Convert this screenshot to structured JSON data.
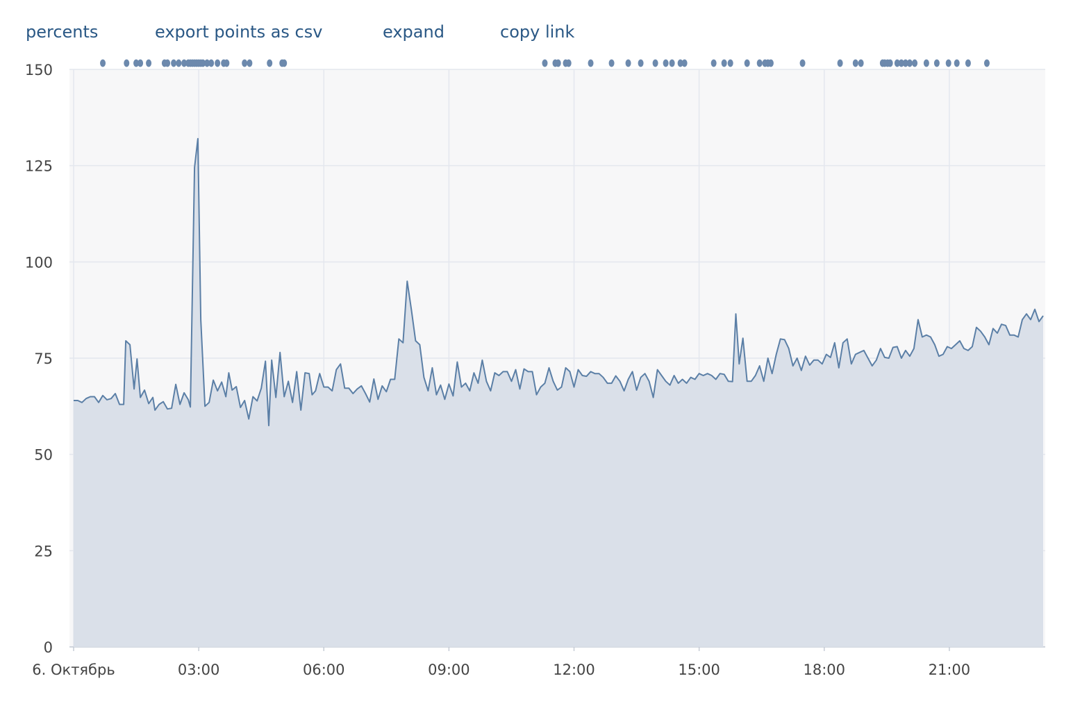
{
  "toolbar": {
    "percents": "percents",
    "export_csv": "export points as csv",
    "expand": "expand",
    "copy_link": "copy link"
  },
  "colors": {
    "line": "#5b7fa6",
    "fill": "#dae0e9",
    "plot_bg": "#f7f7f8",
    "grid": "#e4e7ee",
    "link": "#2a5885",
    "marker": "#6c89ad"
  },
  "chart_data": {
    "type": "area",
    "title": "",
    "xlabel": "",
    "ylabel": "",
    "ylim": [
      0,
      150
    ],
    "xlim_hours": [
      -0.1,
      23.3
    ],
    "y_ticks": [
      {
        "value": 0,
        "label": "0"
      },
      {
        "value": 25,
        "label": "25"
      },
      {
        "value": 50,
        "label": "50"
      },
      {
        "value": 75,
        "label": "75"
      },
      {
        "value": 100,
        "label": "100"
      },
      {
        "value": 125,
        "label": "125"
      },
      {
        "value": 150,
        "label": "150"
      }
    ],
    "x_ticks": [
      {
        "value": 0,
        "label": "6. Октябрь"
      },
      {
        "value": 3,
        "label": "03:00"
      },
      {
        "value": 6,
        "label": "06:00"
      },
      {
        "value": 9,
        "label": "09:00"
      },
      {
        "value": 12,
        "label": "12:00"
      },
      {
        "value": 15,
        "label": "15:00"
      },
      {
        "value": 18,
        "label": "18:00"
      },
      {
        "value": 21,
        "label": "21:00"
      }
    ],
    "grid": true,
    "legend": "none",
    "series": [
      {
        "points": [
          [
            0.0,
            64
          ],
          [
            0.1,
            64
          ],
          [
            0.2,
            63.5
          ],
          [
            0.3,
            64.5
          ],
          [
            0.4,
            65
          ],
          [
            0.5,
            65
          ],
          [
            0.6,
            63.5
          ],
          [
            0.7,
            65.3
          ],
          [
            0.8,
            64.2
          ],
          [
            0.9,
            64.5
          ],
          [
            1.0,
            65.8
          ],
          [
            1.1,
            63
          ],
          [
            1.2,
            63
          ],
          [
            1.25,
            79.5
          ],
          [
            1.35,
            78.5
          ],
          [
            1.45,
            67
          ],
          [
            1.52,
            74.8
          ],
          [
            1.6,
            64.8
          ],
          [
            1.7,
            66.7
          ],
          [
            1.8,
            63.2
          ],
          [
            1.9,
            64.8
          ],
          [
            1.95,
            61.5
          ],
          [
            2.05,
            63
          ],
          [
            2.15,
            63.7
          ],
          [
            2.25,
            61.8
          ],
          [
            2.35,
            62
          ],
          [
            2.45,
            68.2
          ],
          [
            2.55,
            63
          ],
          [
            2.65,
            66
          ],
          [
            2.75,
            64.2
          ],
          [
            2.8,
            62.3
          ],
          [
            2.9,
            124.5
          ],
          [
            2.98,
            132
          ],
          [
            3.05,
            85
          ],
          [
            3.15,
            62.5
          ],
          [
            3.25,
            63.5
          ],
          [
            3.35,
            69.3
          ],
          [
            3.45,
            66.5
          ],
          [
            3.55,
            68.8
          ],
          [
            3.65,
            65
          ],
          [
            3.72,
            71.2
          ],
          [
            3.8,
            66.7
          ],
          [
            3.9,
            67.6
          ],
          [
            4.0,
            62.2
          ],
          [
            4.1,
            64
          ],
          [
            4.2,
            59.2
          ],
          [
            4.3,
            65
          ],
          [
            4.4,
            63.9
          ],
          [
            4.5,
            67.2
          ],
          [
            4.6,
            74.2
          ],
          [
            4.68,
            57.5
          ],
          [
            4.75,
            74.5
          ],
          [
            4.85,
            64.8
          ],
          [
            4.95,
            76.5
          ],
          [
            5.05,
            65
          ],
          [
            5.15,
            69
          ],
          [
            5.25,
            63.5
          ],
          [
            5.35,
            71.5
          ],
          [
            5.45,
            61.5
          ],
          [
            5.55,
            71.2
          ],
          [
            5.65,
            71
          ],
          [
            5.72,
            65.5
          ],
          [
            5.8,
            66.5
          ],
          [
            5.9,
            71
          ],
          [
            6.0,
            67.5
          ],
          [
            6.1,
            67.5
          ],
          [
            6.2,
            66.5
          ],
          [
            6.3,
            72
          ],
          [
            6.4,
            73.5
          ],
          [
            6.5,
            67.2
          ],
          [
            6.6,
            67.2
          ],
          [
            6.7,
            65.8
          ],
          [
            6.8,
            67
          ],
          [
            6.9,
            67.8
          ],
          [
            7.0,
            65.8
          ],
          [
            7.1,
            63.6
          ],
          [
            7.2,
            69.6
          ],
          [
            7.3,
            64.3
          ],
          [
            7.4,
            67.8
          ],
          [
            7.5,
            66.3
          ],
          [
            7.6,
            69.5
          ],
          [
            7.7,
            69.5
          ],
          [
            7.8,
            80
          ],
          [
            7.9,
            79
          ],
          [
            8.0,
            95
          ],
          [
            8.1,
            87.5
          ],
          [
            8.2,
            79.5
          ],
          [
            8.3,
            78.5
          ],
          [
            8.4,
            70
          ],
          [
            8.5,
            66.5
          ],
          [
            8.6,
            72.5
          ],
          [
            8.7,
            65.5
          ],
          [
            8.8,
            68
          ],
          [
            8.9,
            64.3
          ],
          [
            9.0,
            68.3
          ],
          [
            9.1,
            65.2
          ],
          [
            9.2,
            74
          ],
          [
            9.3,
            67.5
          ],
          [
            9.4,
            68.5
          ],
          [
            9.5,
            66.5
          ],
          [
            9.6,
            71.2
          ],
          [
            9.7,
            68.5
          ],
          [
            9.8,
            74.5
          ],
          [
            9.9,
            69
          ],
          [
            10.0,
            66.5
          ],
          [
            10.1,
            71.2
          ],
          [
            10.2,
            70.5
          ],
          [
            10.3,
            71.5
          ],
          [
            10.4,
            71.5
          ],
          [
            10.5,
            69
          ],
          [
            10.6,
            72
          ],
          [
            10.7,
            67
          ],
          [
            10.8,
            72.2
          ],
          [
            10.9,
            71.5
          ],
          [
            11.0,
            71.5
          ],
          [
            11.1,
            65.5
          ],
          [
            11.2,
            67.5
          ],
          [
            11.3,
            68.5
          ],
          [
            11.4,
            72.5
          ],
          [
            11.5,
            69
          ],
          [
            11.6,
            66.7
          ],
          [
            11.7,
            67.5
          ],
          [
            11.8,
            72.5
          ],
          [
            11.9,
            71.5
          ],
          [
            12.0,
            67.5
          ],
          [
            12.1,
            72
          ],
          [
            12.2,
            70.5
          ],
          [
            12.3,
            70.3
          ],
          [
            12.4,
            71.5
          ],
          [
            12.5,
            71
          ],
          [
            12.6,
            71
          ],
          [
            12.7,
            70
          ],
          [
            12.8,
            68.5
          ],
          [
            12.9,
            68.5
          ],
          [
            13.0,
            70.4
          ],
          [
            13.1,
            69
          ],
          [
            13.2,
            66.5
          ],
          [
            13.3,
            69.5
          ],
          [
            13.4,
            71.5
          ],
          [
            13.5,
            66.7
          ],
          [
            13.6,
            70
          ],
          [
            13.7,
            71
          ],
          [
            13.8,
            69
          ],
          [
            13.9,
            64.8
          ],
          [
            14.0,
            72
          ],
          [
            14.1,
            70.5
          ],
          [
            14.2,
            69
          ],
          [
            14.3,
            68
          ],
          [
            14.4,
            70.5
          ],
          [
            14.5,
            68.5
          ],
          [
            14.6,
            69.5
          ],
          [
            14.7,
            68.5
          ],
          [
            14.8,
            70
          ],
          [
            14.9,
            69.5
          ],
          [
            15.0,
            71
          ],
          [
            15.1,
            70.5
          ],
          [
            15.2,
            71
          ],
          [
            15.3,
            70.5
          ],
          [
            15.4,
            69.5
          ],
          [
            15.5,
            71
          ],
          [
            15.6,
            70.8
          ],
          [
            15.7,
            69
          ],
          [
            15.8,
            68.9
          ],
          [
            15.88,
            86.5
          ],
          [
            15.96,
            73.5
          ],
          [
            16.05,
            80.2
          ],
          [
            16.15,
            69
          ],
          [
            16.25,
            69
          ],
          [
            16.35,
            70.5
          ],
          [
            16.45,
            73
          ],
          [
            16.55,
            69
          ],
          [
            16.65,
            75
          ],
          [
            16.75,
            71
          ],
          [
            16.85,
            76
          ],
          [
            16.95,
            80
          ],
          [
            17.05,
            79.8
          ],
          [
            17.15,
            77.5
          ],
          [
            17.25,
            73
          ],
          [
            17.35,
            75
          ],
          [
            17.45,
            71.8
          ],
          [
            17.55,
            75.5
          ],
          [
            17.65,
            73.2
          ],
          [
            17.75,
            74.5
          ],
          [
            17.85,
            74.5
          ],
          [
            17.95,
            73.5
          ],
          [
            18.05,
            76
          ],
          [
            18.15,
            75.2
          ],
          [
            18.25,
            79
          ],
          [
            18.35,
            72.5
          ],
          [
            18.45,
            79
          ],
          [
            18.55,
            80
          ],
          [
            18.65,
            73.5
          ],
          [
            18.75,
            76
          ],
          [
            18.85,
            76.5
          ],
          [
            18.95,
            77
          ],
          [
            19.05,
            75
          ],
          [
            19.15,
            73
          ],
          [
            19.25,
            74.5
          ],
          [
            19.35,
            77.5
          ],
          [
            19.45,
            75.2
          ],
          [
            19.55,
            75
          ],
          [
            19.65,
            77.8
          ],
          [
            19.75,
            78
          ],
          [
            19.85,
            75
          ],
          [
            19.95,
            77
          ],
          [
            20.05,
            75.5
          ],
          [
            20.15,
            77.5
          ],
          [
            20.25,
            85
          ],
          [
            20.35,
            80.5
          ],
          [
            20.45,
            81
          ],
          [
            20.55,
            80.5
          ],
          [
            20.65,
            78.5
          ],
          [
            20.75,
            75.5
          ],
          [
            20.85,
            76
          ],
          [
            20.95,
            78
          ],
          [
            21.05,
            77.5
          ],
          [
            21.15,
            78.5
          ],
          [
            21.25,
            79.5
          ],
          [
            21.35,
            77.5
          ],
          [
            21.45,
            77
          ],
          [
            21.55,
            78
          ],
          [
            21.65,
            83
          ],
          [
            21.75,
            82
          ],
          [
            21.85,
            80.5
          ],
          [
            21.95,
            78.5
          ],
          [
            22.05,
            82.7
          ],
          [
            22.15,
            81.5
          ],
          [
            22.25,
            83.8
          ],
          [
            22.35,
            83.5
          ],
          [
            22.45,
            81
          ],
          [
            22.55,
            81
          ],
          [
            22.65,
            80.5
          ],
          [
            22.75,
            85
          ],
          [
            22.85,
            86.5
          ],
          [
            22.95,
            85
          ],
          [
            23.05,
            87.7
          ],
          [
            23.15,
            84.5
          ],
          [
            23.25,
            86
          ]
        ]
      }
    ],
    "marker_hours": [
      0.7,
      1.27,
      1.5,
      1.6,
      1.8,
      2.18,
      2.25,
      2.4,
      2.52,
      2.65,
      2.75,
      2.8,
      2.85,
      2.9,
      2.95,
      3.0,
      3.05,
      3.1,
      3.2,
      3.3,
      3.45,
      3.6,
      3.67,
      4.1,
      4.22,
      4.7,
      5.0,
      5.05,
      11.3,
      11.55,
      11.62,
      11.8,
      11.87,
      12.4,
      12.9,
      13.3,
      13.6,
      13.95,
      14.2,
      14.35,
      14.55,
      14.65,
      15.35,
      15.6,
      15.75,
      16.15,
      16.45,
      16.58,
      16.65,
      16.72,
      17.48,
      18.38,
      18.75,
      18.88,
      19.4,
      19.45,
      19.52,
      19.58,
      19.75,
      19.85,
      19.95,
      20.05,
      20.17,
      20.45,
      20.7,
      20.98,
      21.18,
      21.45,
      21.9
    ]
  }
}
